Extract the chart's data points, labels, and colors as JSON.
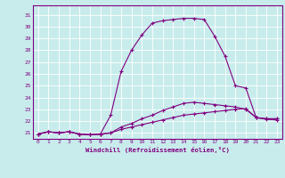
{
  "title": "",
  "xlabel": "Windchill (Refroidissement éolien,°C)",
  "bg_color": "#c8ecec",
  "grid_color": "#ffffff",
  "line_color": "#800080",
  "x_ticks": [
    0,
    1,
    2,
    3,
    4,
    5,
    6,
    7,
    8,
    9,
    10,
    11,
    12,
    13,
    14,
    15,
    16,
    17,
    18,
    19,
    20,
    21,
    22,
    23
  ],
  "y_ticks": [
    21,
    22,
    23,
    24,
    25,
    26,
    27,
    28,
    29,
    30,
    31
  ],
  "ylim": [
    20.5,
    31.8
  ],
  "xlim": [
    -0.5,
    23.5
  ],
  "series": [
    [
      20.9,
      21.1,
      21.0,
      21.1,
      20.9,
      20.85,
      20.9,
      21.0,
      21.3,
      21.5,
      21.7,
      21.9,
      22.1,
      22.3,
      22.5,
      22.6,
      22.7,
      22.8,
      22.9,
      23.0,
      23.05,
      22.3,
      22.2,
      22.2
    ],
    [
      20.9,
      21.1,
      21.0,
      21.1,
      20.9,
      20.85,
      20.9,
      21.0,
      21.5,
      21.8,
      22.2,
      22.5,
      22.9,
      23.2,
      23.5,
      23.6,
      23.5,
      23.4,
      23.3,
      23.2,
      23.0,
      22.3,
      22.2,
      22.2
    ],
    [
      20.9,
      21.1,
      21.0,
      21.1,
      20.9,
      20.85,
      20.9,
      22.5,
      26.2,
      28.0,
      29.3,
      30.3,
      30.5,
      30.6,
      30.7,
      30.7,
      30.6,
      29.2,
      27.5,
      25.0,
      24.8,
      22.3,
      22.15,
      22.1
    ]
  ]
}
